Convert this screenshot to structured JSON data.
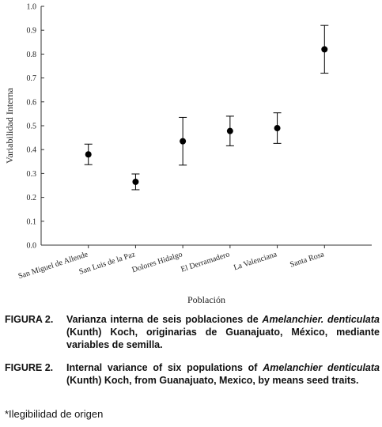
{
  "chart_data": {
    "type": "errorbar",
    "y_label": "Variabilidad Interna",
    "x_label": "Población",
    "categories": [
      "San Miguel de Allende",
      "San Luis de la Paz",
      "Dolores Hidalgo",
      "El Derramadero",
      "La Valenciana",
      "Santa Rosa"
    ],
    "values": [
      0.38,
      0.265,
      0.435,
      0.478,
      0.49,
      0.82
    ],
    "errors": [
      0.043,
      0.033,
      0.1,
      0.062,
      0.064,
      0.1
    ],
    "color": "#000000",
    "ylim": [
      0,
      1
    ],
    "yticks": [
      {
        "value": 0,
        "label": "0.0"
      },
      0.1,
      0.2,
      0.3,
      0.4,
      0.5,
      0.6,
      0.7,
      0.8,
      0.9,
      {
        "value": 1,
        "label": "1.0"
      }
    ]
  },
  "captions": [
    {
      "label": "FIGURA 2.",
      "before": "Varianza interna de seis poblaciones de ",
      "italic": "Amelanchier. denticulata",
      "after": " (Kunth) Koch, originarias de Guanajuato, México, mediante variables de semilla."
    },
    {
      "label": "FIGURE 2.",
      "before": "Internal variance of six populations of ",
      "italic": "Amelanchier denticulata",
      "after": " (Kunth) Koch, from Guanajuato, Mexico, by means seed traits."
    }
  ],
  "note": "*Ilegibilidad de origen"
}
